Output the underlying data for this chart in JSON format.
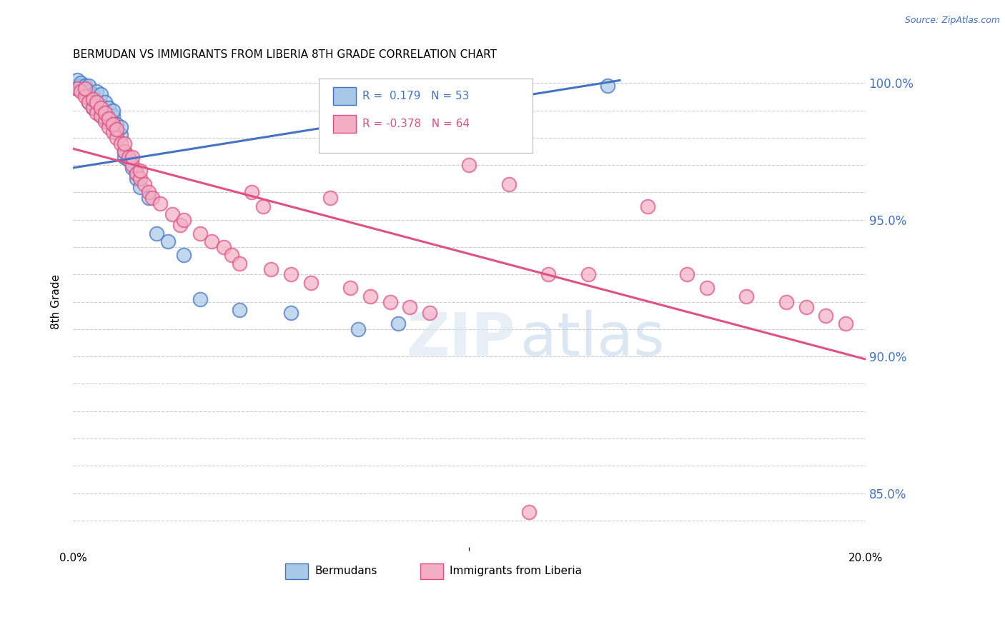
{
  "title": "BERMUDAN VS IMMIGRANTS FROM LIBERIA 8TH GRADE CORRELATION CHART",
  "source": "Source: ZipAtlas.com",
  "ylabel": "8th Grade",
  "blue_R": 0.179,
  "blue_N": 53,
  "pink_R": -0.378,
  "pink_N": 64,
  "blue_color": "#a8c8e8",
  "pink_color": "#f4aec4",
  "blue_line_color": "#4472c4",
  "pink_line_color": "#e05080",
  "background_color": "#ffffff",
  "watermark_zip": "ZIP",
  "watermark_atlas": "atlas",
  "xlim": [
    0.0,
    0.2
  ],
  "ylim": [
    0.835,
    1.005
  ],
  "ytick_positions": [
    0.84,
    0.85,
    0.86,
    0.87,
    0.88,
    0.89,
    0.9,
    0.91,
    0.92,
    0.93,
    0.94,
    0.95,
    0.96,
    0.97,
    0.98,
    0.99,
    1.0
  ],
  "blue_scatter_x": [
    0.001,
    0.001,
    0.002,
    0.002,
    0.003,
    0.003,
    0.003,
    0.004,
    0.004,
    0.004,
    0.004,
    0.005,
    0.005,
    0.005,
    0.005,
    0.006,
    0.006,
    0.006,
    0.007,
    0.007,
    0.007,
    0.007,
    0.007,
    0.008,
    0.008,
    0.008,
    0.009,
    0.009,
    0.009,
    0.01,
    0.01,
    0.01,
    0.011,
    0.011,
    0.012,
    0.012,
    0.013,
    0.013,
    0.014,
    0.015,
    0.016,
    0.016,
    0.017,
    0.019,
    0.021,
    0.024,
    0.028,
    0.032,
    0.042,
    0.055,
    0.072,
    0.082,
    0.135
  ],
  "blue_scatter_y": [
    0.998,
    1.001,
    0.999,
    1.0,
    0.997,
    0.998,
    0.999,
    0.993,
    0.995,
    0.997,
    0.999,
    0.991,
    0.993,
    0.995,
    0.996,
    0.991,
    0.993,
    0.997,
    0.988,
    0.99,
    0.991,
    0.992,
    0.996,
    0.987,
    0.989,
    0.993,
    0.986,
    0.987,
    0.991,
    0.985,
    0.988,
    0.99,
    0.982,
    0.985,
    0.981,
    0.984,
    0.973,
    0.975,
    0.972,
    0.969,
    0.965,
    0.967,
    0.962,
    0.958,
    0.945,
    0.942,
    0.937,
    0.921,
    0.917,
    0.916,
    0.91,
    0.912,
    0.999
  ],
  "pink_scatter_x": [
    0.001,
    0.002,
    0.003,
    0.003,
    0.004,
    0.005,
    0.005,
    0.006,
    0.006,
    0.007,
    0.007,
    0.008,
    0.008,
    0.009,
    0.009,
    0.01,
    0.01,
    0.011,
    0.011,
    0.012,
    0.013,
    0.013,
    0.014,
    0.015,
    0.015,
    0.016,
    0.017,
    0.017,
    0.018,
    0.019,
    0.02,
    0.022,
    0.025,
    0.027,
    0.028,
    0.032,
    0.035,
    0.038,
    0.04,
    0.042,
    0.045,
    0.048,
    0.05,
    0.055,
    0.06,
    0.065,
    0.07,
    0.075,
    0.08,
    0.085,
    0.09,
    0.1,
    0.11,
    0.12,
    0.13,
    0.145,
    0.155,
    0.16,
    0.17,
    0.18,
    0.185,
    0.19,
    0.195,
    0.115
  ],
  "pink_scatter_y": [
    0.998,
    0.997,
    0.995,
    0.998,
    0.993,
    0.991,
    0.994,
    0.989,
    0.993,
    0.988,
    0.991,
    0.986,
    0.989,
    0.984,
    0.987,
    0.982,
    0.985,
    0.98,
    0.983,
    0.978,
    0.975,
    0.978,
    0.973,
    0.97,
    0.973,
    0.967,
    0.965,
    0.968,
    0.963,
    0.96,
    0.958,
    0.956,
    0.952,
    0.948,
    0.95,
    0.945,
    0.942,
    0.94,
    0.937,
    0.934,
    0.96,
    0.955,
    0.932,
    0.93,
    0.927,
    0.958,
    0.925,
    0.922,
    0.92,
    0.918,
    0.916,
    0.97,
    0.963,
    0.93,
    0.93,
    0.955,
    0.93,
    0.925,
    0.922,
    0.92,
    0.918,
    0.915,
    0.912,
    0.843
  ],
  "blue_trend_x": [
    0.0,
    0.138
  ],
  "blue_trend_y": [
    0.969,
    1.001
  ],
  "pink_trend_x": [
    0.0,
    0.2
  ],
  "pink_trend_y": [
    0.976,
    0.899
  ]
}
